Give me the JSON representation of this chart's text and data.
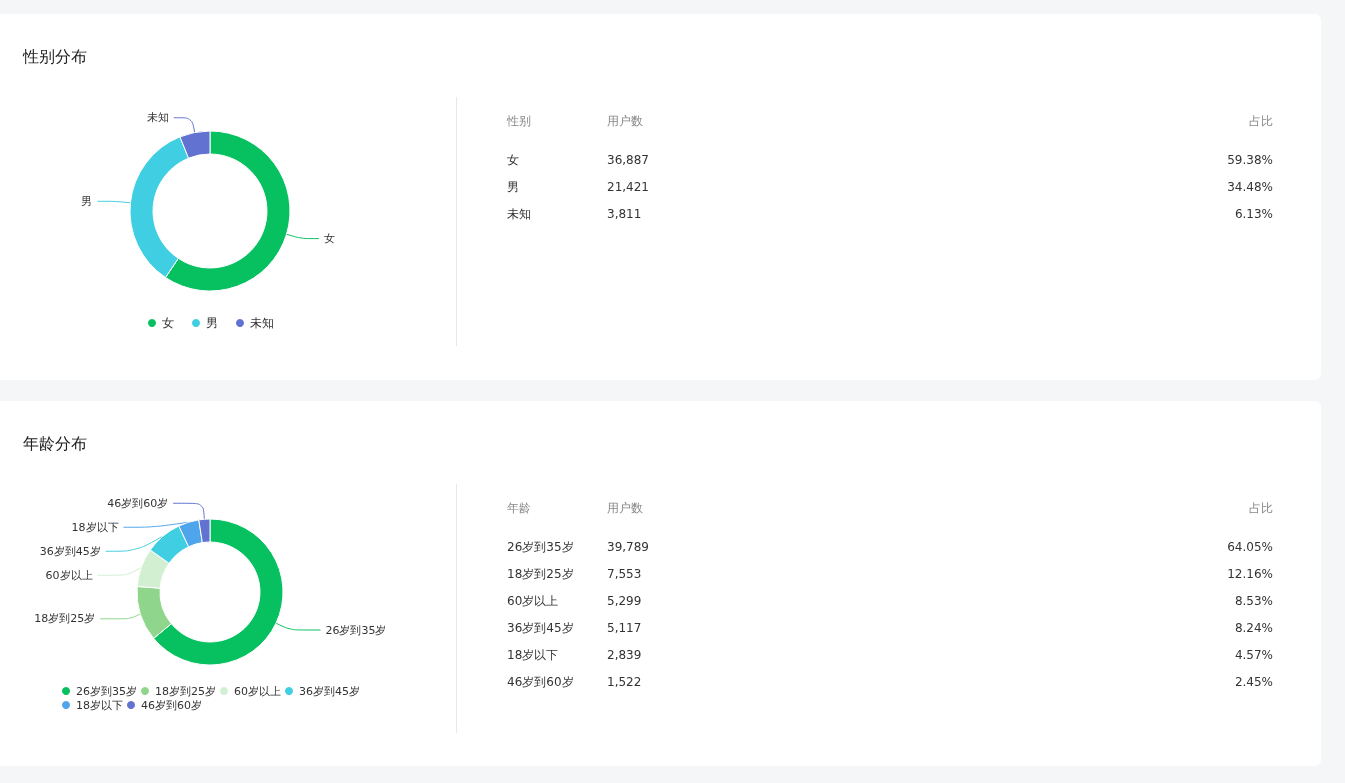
{
  "chart_data": [
    {
      "type": "donut",
      "title": "性别分布",
      "categories": [
        "女",
        "男",
        "未知"
      ],
      "values": [
        59.38,
        34.48,
        6.13
      ],
      "colors": [
        "#07c160",
        "#40cfe2",
        "#6272d0"
      ],
      "legend": "bottom"
    },
    {
      "type": "other",
      "annotations": [
        "性别",
        "用户数",
        "占比",
        "女",
        "36,887",
        "59.38%",
        "男",
        "21,421",
        "34.48%",
        "未知",
        "3,811",
        "6.13%"
      ]
    },
    {
      "type": "donut",
      "title": "年龄分布",
      "categories": [
        "26岁到35岁",
        "18岁到25岁",
        "60岁以上",
        "36岁到45岁",
        "18岁以下",
        "46岁到60岁"
      ],
      "values": [
        64.05,
        12.16,
        8.53,
        8.24,
        4.57,
        2.45
      ],
      "colors": [
        "#07c160",
        "#8fd68c",
        "#d2efd2",
        "#40cfe2",
        "#4ea5ec",
        "#6272d0"
      ],
      "legend": "bottom"
    },
    {
      "type": "other",
      "annotations": [
        "年龄",
        "用户数",
        "占比",
        "26岁到35岁",
        "39,789",
        "64.05%",
        "18岁到25岁",
        "7,553",
        "12.16%",
        "60岁以上",
        "5,299",
        "8.53%",
        "36岁到45岁",
        "5,117",
        "8.24%",
        "18岁以下",
        "2,839",
        "4.57%",
        "46岁到60岁",
        "1,522",
        "2.45%"
      ]
    }
  ]
}
